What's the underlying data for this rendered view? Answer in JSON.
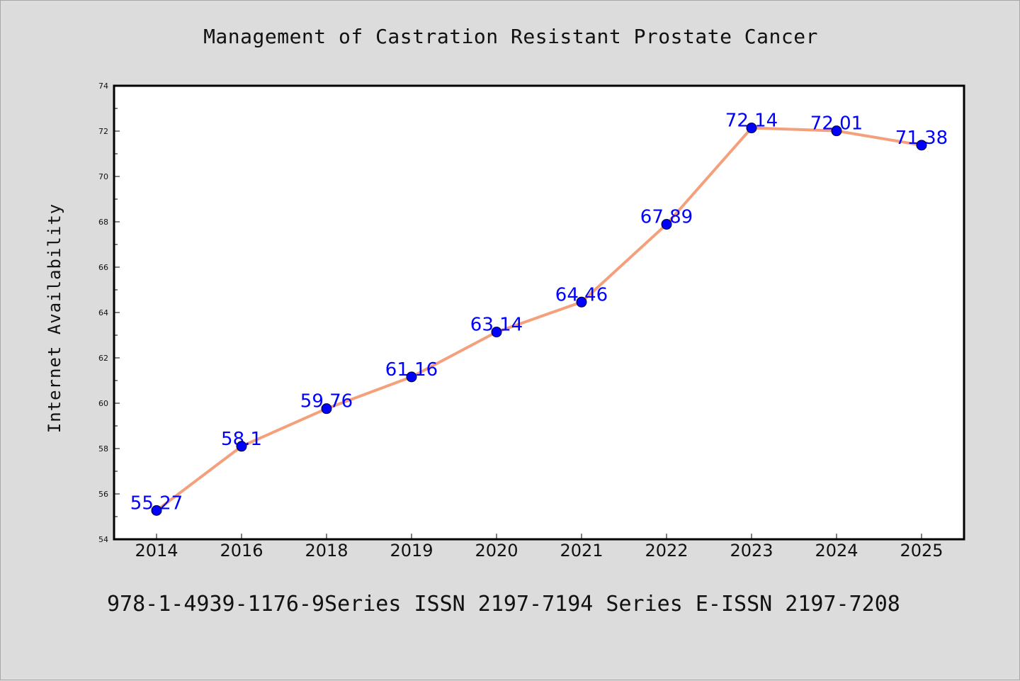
{
  "chart_data": {
    "type": "line",
    "title": "Management of Castration Resistant Prostate Cancer",
    "xlabel": "",
    "ylabel": "Internet Availability",
    "categories": [
      "2014",
      "2016",
      "2018",
      "2019",
      "2020",
      "2021",
      "2022",
      "2023",
      "2024",
      "2025"
    ],
    "values": [
      55.27,
      58.1,
      59.76,
      61.16,
      63.14,
      64.46,
      67.89,
      72.14,
      72.01,
      71.38
    ],
    "data_labels": [
      "55.27",
      "58.1",
      "59.76",
      "61.16",
      "63.14",
      "64.46",
      "67.89",
      "72.14",
      "72.01",
      "71.38"
    ],
    "ylim": [
      54,
      74
    ],
    "yticks": [
      "54",
      "56",
      "58",
      "60",
      "62",
      "64",
      "66",
      "68",
      "70",
      "72",
      "74"
    ],
    "grid": false,
    "legend": "none",
    "colors": {
      "line": "#f4a07c",
      "marker": "#0000ff",
      "label": "#0000ff"
    }
  },
  "footer": "978-1-4939-1176-9Series ISSN 2197-7194 Series E-ISSN 2197-7208"
}
